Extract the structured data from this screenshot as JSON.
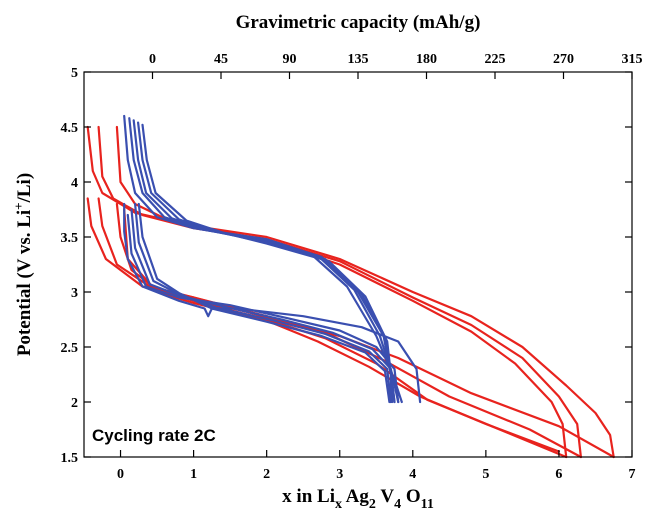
{
  "chart_data": {
    "type": "line",
    "title": "",
    "xlabel_parts": [
      "x in Li",
      "x",
      " Ag",
      "2",
      " V",
      "4",
      " O",
      "11"
    ],
    "ylabel_parts": [
      "Potential (V vs. Li",
      "+",
      "/Li)"
    ],
    "x2label": "Gravimetric capacity (mAh/g)",
    "annotation": "Cycling rate 2C",
    "xlim": [
      -0.5,
      7
    ],
    "ylim": [
      1.5,
      5
    ],
    "x2lim": [
      -45,
      315
    ],
    "x_ticks": [
      {
        "v": 0,
        "label": "0"
      },
      {
        "v": 1,
        "label": "1"
      },
      {
        "v": 2,
        "label": "2"
      },
      {
        "v": 3,
        "label": "3"
      },
      {
        "v": 4,
        "label": "4"
      },
      {
        "v": 5,
        "label": "5"
      },
      {
        "v": 6,
        "label": "6"
      },
      {
        "v": 7,
        "label": "7"
      }
    ],
    "y_ticks": [
      {
        "v": 1.5,
        "label": "1.5"
      },
      {
        "v": 2,
        "label": "2"
      },
      {
        "v": 2.5,
        "label": "2.5"
      },
      {
        "v": 3,
        "label": "3"
      },
      {
        "v": 3.5,
        "label": "3.5"
      },
      {
        "v": 4,
        "label": "4"
      },
      {
        "v": 4.5,
        "label": "4.5"
      },
      {
        "v": 5,
        "label": "5"
      }
    ],
    "x2_ticks": [
      {
        "v": 0,
        "label": "0"
      },
      {
        "v": 45,
        "label": "45"
      },
      {
        "v": 90,
        "label": "90"
      },
      {
        "v": 135,
        "label": "135"
      },
      {
        "v": 180,
        "label": "180"
      },
      {
        "v": 225,
        "label": "225"
      },
      {
        "v": 270,
        "label": "270"
      },
      {
        "v": 315,
        "label": "315"
      }
    ],
    "series": [
      {
        "color": "#e8231e",
        "values": [
          [
            -0.45,
            4.5
          ],
          [
            -0.38,
            4.1
          ],
          [
            -0.25,
            3.9
          ],
          [
            0.2,
            3.72
          ],
          [
            1,
            3.6
          ],
          [
            2,
            3.5
          ],
          [
            3,
            3.3
          ],
          [
            4,
            3.0
          ],
          [
            4.8,
            2.78
          ],
          [
            5.5,
            2.5
          ],
          [
            6.1,
            2.15
          ],
          [
            6.5,
            1.9
          ],
          [
            6.7,
            1.7
          ],
          [
            6.75,
            1.5
          ]
        ]
      },
      {
        "color": "#e8231e",
        "values": [
          [
            -0.3,
            4.5
          ],
          [
            -0.25,
            4.05
          ],
          [
            -0.1,
            3.85
          ],
          [
            0.3,
            3.7
          ],
          [
            1,
            3.58
          ],
          [
            2,
            3.48
          ],
          [
            3,
            3.28
          ],
          [
            4,
            2.95
          ],
          [
            4.8,
            2.7
          ],
          [
            5.5,
            2.4
          ],
          [
            6.0,
            2.05
          ],
          [
            6.25,
            1.8
          ],
          [
            6.3,
            1.5
          ]
        ]
      },
      {
        "color": "#e8231e",
        "values": [
          [
            -0.05,
            4.5
          ],
          [
            0,
            4.0
          ],
          [
            0.2,
            3.8
          ],
          [
            0.6,
            3.67
          ],
          [
            1.2,
            3.57
          ],
          [
            2,
            3.47
          ],
          [
            3,
            3.25
          ],
          [
            4,
            2.92
          ],
          [
            4.8,
            2.64
          ],
          [
            5.4,
            2.35
          ],
          [
            5.9,
            2.0
          ],
          [
            6.05,
            1.8
          ],
          [
            6.1,
            1.5
          ]
        ]
      },
      {
        "color": "#e8231e",
        "values": [
          [
            6.75,
            1.5
          ],
          [
            6.0,
            1.78
          ],
          [
            4.8,
            2.08
          ],
          [
            3.8,
            2.4
          ],
          [
            3.0,
            2.6
          ],
          [
            2,
            2.77
          ],
          [
            1,
            2.95
          ],
          [
            0.3,
            3.05
          ],
          [
            -0.2,
            3.3
          ],
          [
            -0.4,
            3.6
          ],
          [
            -0.45,
            3.85
          ]
        ]
      },
      {
        "color": "#e8231e",
        "values": [
          [
            6.3,
            1.5
          ],
          [
            5.6,
            1.75
          ],
          [
            4.5,
            2.05
          ],
          [
            3.6,
            2.38
          ],
          [
            2.9,
            2.6
          ],
          [
            2,
            2.78
          ],
          [
            1,
            2.95
          ],
          [
            0.4,
            3.05
          ],
          [
            -0.05,
            3.25
          ],
          [
            -0.25,
            3.6
          ],
          [
            -0.3,
            3.85
          ]
        ]
      },
      {
        "color": "#e8231e",
        "values": [
          [
            6.1,
            1.5
          ],
          [
            5.3,
            1.72
          ],
          [
            4.2,
            2.02
          ],
          [
            3.5,
            2.35
          ],
          [
            2.8,
            2.58
          ],
          [
            2,
            2.75
          ],
          [
            1,
            2.92
          ],
          [
            0.5,
            3.02
          ],
          [
            0.15,
            3.2
          ],
          [
            0,
            3.5
          ],
          [
            -0.05,
            3.8
          ]
        ]
      },
      {
        "color": "#e8231e",
        "values": [
          [
            6.0,
            1.55
          ],
          [
            5.0,
            1.8
          ],
          [
            4.1,
            2.05
          ],
          [
            3.4,
            2.32
          ],
          [
            2.7,
            2.55
          ],
          [
            2,
            2.74
          ],
          [
            1,
            2.9
          ],
          [
            0.5,
            3.0
          ],
          [
            0.1,
            3.3
          ],
          [
            0.05,
            3.75
          ]
        ]
      },
      {
        "color": "#3a4fb0",
        "values": [
          [
            0.05,
            4.6
          ],
          [
            0.1,
            4.2
          ],
          [
            0.2,
            3.9
          ],
          [
            0.5,
            3.68
          ],
          [
            1,
            3.58
          ],
          [
            2,
            3.48
          ],
          [
            2.6,
            3.35
          ],
          [
            3.1,
            3.05
          ],
          [
            3.5,
            2.6
          ],
          [
            3.75,
            2.2
          ],
          [
            3.85,
            2.0
          ]
        ]
      },
      {
        "color": "#3a4fb0",
        "values": [
          [
            0.12,
            4.58
          ],
          [
            0.18,
            4.2
          ],
          [
            0.3,
            3.9
          ],
          [
            0.6,
            3.68
          ],
          [
            1.1,
            3.57
          ],
          [
            2,
            3.47
          ],
          [
            2.7,
            3.33
          ],
          [
            3.2,
            3.02
          ],
          [
            3.55,
            2.6
          ],
          [
            3.72,
            2.25
          ],
          [
            3.8,
            2.0
          ]
        ]
      },
      {
        "color": "#3a4fb0",
        "values": [
          [
            0.18,
            4.56
          ],
          [
            0.24,
            4.2
          ],
          [
            0.35,
            3.9
          ],
          [
            0.7,
            3.67
          ],
          [
            1.2,
            3.56
          ],
          [
            2,
            3.46
          ],
          [
            2.75,
            3.32
          ],
          [
            3.25,
            3.0
          ],
          [
            3.6,
            2.6
          ],
          [
            3.7,
            2.25
          ],
          [
            3.75,
            2.0
          ]
        ]
      },
      {
        "color": "#3a4fb0",
        "values": [
          [
            0.24,
            4.54
          ],
          [
            0.3,
            4.2
          ],
          [
            0.42,
            3.9
          ],
          [
            0.8,
            3.66
          ],
          [
            1.3,
            3.55
          ],
          [
            2,
            3.45
          ],
          [
            2.8,
            3.3
          ],
          [
            3.3,
            2.98
          ],
          [
            3.62,
            2.58
          ],
          [
            3.7,
            2.25
          ],
          [
            3.72,
            2.0
          ]
        ]
      },
      {
        "color": "#3a4fb0",
        "values": [
          [
            0.3,
            4.52
          ],
          [
            0.36,
            4.2
          ],
          [
            0.48,
            3.9
          ],
          [
            0.9,
            3.65
          ],
          [
            1.4,
            3.54
          ],
          [
            2,
            3.44
          ],
          [
            2.85,
            3.28
          ],
          [
            3.35,
            2.96
          ],
          [
            3.65,
            2.55
          ],
          [
            3.7,
            2.25
          ],
          [
            3.7,
            2.0
          ]
        ]
      },
      {
        "color": "#3a4fb0",
        "values": [
          [
            4.1,
            2.0
          ],
          [
            4.05,
            2.3
          ],
          [
            3.8,
            2.55
          ],
          [
            3.3,
            2.68
          ],
          [
            2.5,
            2.78
          ],
          [
            1.6,
            2.85
          ],
          [
            1.25,
            2.85
          ],
          [
            1.2,
            2.78
          ],
          [
            1.15,
            2.85
          ],
          [
            0.8,
            2.92
          ],
          [
            0.3,
            3.05
          ],
          [
            0.1,
            3.3
          ],
          [
            0.05,
            3.55
          ],
          [
            0.05,
            3.8
          ]
        ]
      },
      {
        "color": "#3a4fb0",
        "values": [
          [
            3.8,
            2.0
          ],
          [
            3.75,
            2.3
          ],
          [
            3.5,
            2.5
          ],
          [
            3.0,
            2.65
          ],
          [
            2.3,
            2.76
          ],
          [
            1.5,
            2.88
          ],
          [
            0.8,
            2.95
          ],
          [
            0.35,
            3.05
          ],
          [
            0.15,
            3.35
          ],
          [
            0.1,
            3.7
          ]
        ]
      },
      {
        "color": "#3a4fb0",
        "values": [
          [
            3.75,
            2.0
          ],
          [
            3.7,
            2.3
          ],
          [
            3.45,
            2.48
          ],
          [
            2.9,
            2.63
          ],
          [
            2.2,
            2.75
          ],
          [
            1.4,
            2.87
          ],
          [
            0.8,
            2.97
          ],
          [
            0.4,
            3.07
          ],
          [
            0.2,
            3.4
          ],
          [
            0.15,
            3.75
          ]
        ]
      },
      {
        "color": "#3a4fb0",
        "values": [
          [
            3.7,
            2.0
          ],
          [
            3.65,
            2.3
          ],
          [
            3.4,
            2.46
          ],
          [
            2.8,
            2.62
          ],
          [
            2.1,
            2.74
          ],
          [
            1.3,
            2.86
          ],
          [
            0.8,
            2.98
          ],
          [
            0.45,
            3.1
          ],
          [
            0.25,
            3.45
          ],
          [
            0.2,
            3.8
          ]
        ]
      },
      {
        "color": "#3a4fb0",
        "values": [
          [
            3.68,
            2.0
          ],
          [
            3.62,
            2.28
          ],
          [
            3.35,
            2.45
          ],
          [
            2.75,
            2.6
          ],
          [
            2.0,
            2.73
          ],
          [
            1.25,
            2.85
          ],
          [
            0.8,
            2.99
          ],
          [
            0.5,
            3.12
          ],
          [
            0.3,
            3.5
          ],
          [
            0.25,
            3.8
          ]
        ]
      }
    ]
  }
}
